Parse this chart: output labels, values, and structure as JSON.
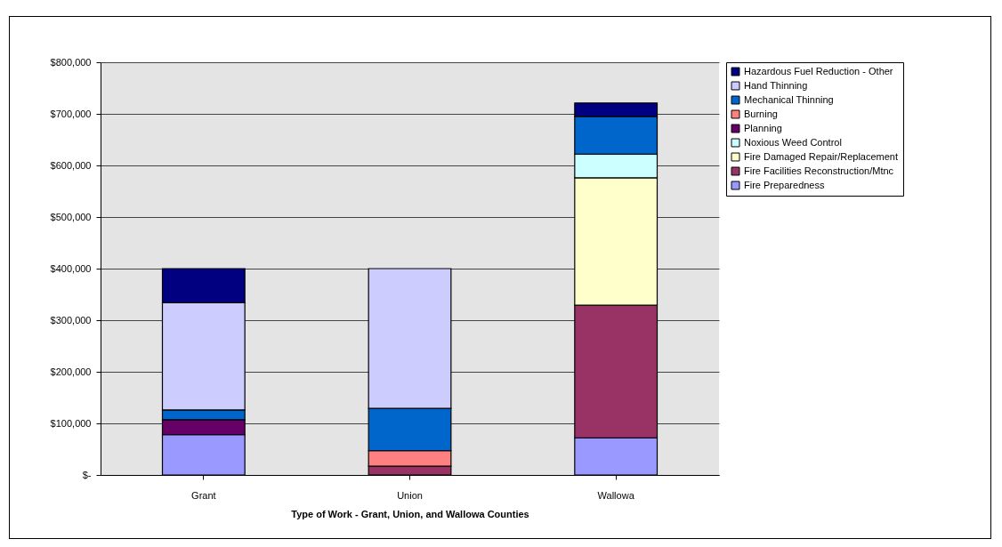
{
  "chart_data": {
    "type": "bar",
    "stacked": true,
    "xlabel": "Type of Work - Grant, Union, and Wallowa Counties",
    "categories": [
      "Grant",
      "Union",
      "Wallowa"
    ],
    "series": [
      {
        "name": "Fire Preparedness",
        "color": "#9999ff",
        "values": [
          78000,
          0,
          72000
        ]
      },
      {
        "name": "Fire Facilities Reconstruction/Mtnc",
        "color": "#993366",
        "values": [
          0,
          17000,
          257000
        ]
      },
      {
        "name": "Fire Damaged Repair/Replacement",
        "color": "#ffffcc",
        "values": [
          0,
          0,
          247000
        ]
      },
      {
        "name": "Noxious Weed Control",
        "color": "#ccffff",
        "values": [
          0,
          0,
          46000
        ]
      },
      {
        "name": "Planning",
        "color": "#660066",
        "values": [
          29000,
          0,
          0
        ]
      },
      {
        "name": "Burning",
        "color": "#ff8080",
        "values": [
          0,
          30000,
          0
        ]
      },
      {
        "name": "Mechanical Thinning",
        "color": "#0066cc",
        "values": [
          19000,
          82000,
          73000
        ]
      },
      {
        "name": "Hand Thinning",
        "color": "#ccccff",
        "values": [
          208000,
          271000,
          0
        ]
      },
      {
        "name": "Hazardous Fuel Reduction - Other",
        "color": "#000080",
        "values": [
          66000,
          0,
          26000
        ]
      }
    ],
    "ylim": [
      0,
      800000
    ],
    "yticks": [
      {
        "value": 0,
        "label": "$-"
      },
      {
        "value": 100000,
        "label": "$100,000"
      },
      {
        "value": 200000,
        "label": "$200,000"
      },
      {
        "value": 300000,
        "label": "$300,000"
      },
      {
        "value": 400000,
        "label": "$400,000"
      },
      {
        "value": 500000,
        "label": "$500,000"
      },
      {
        "value": 600000,
        "label": "$600,000"
      },
      {
        "value": 700000,
        "label": "$700,000"
      },
      {
        "value": 800000,
        "label": "$800,000"
      }
    ],
    "grid": "y",
    "legend": "right"
  }
}
